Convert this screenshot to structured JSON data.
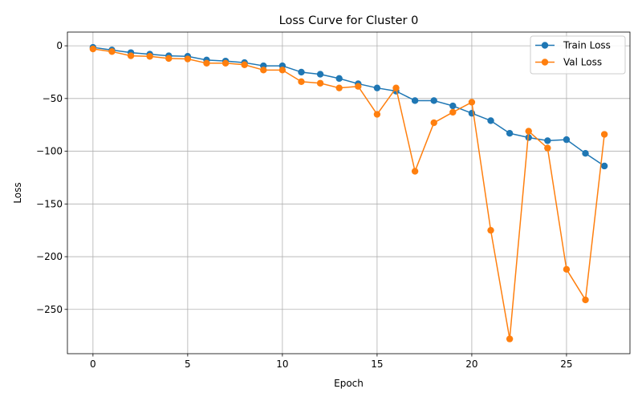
{
  "chart_data": {
    "type": "line",
    "title": "Loss Curve for Cluster 0",
    "xlabel": "Epoch",
    "ylabel": "Loss",
    "x": [
      0,
      1,
      2,
      3,
      4,
      5,
      6,
      7,
      8,
      9,
      10,
      11,
      12,
      13,
      14,
      15,
      16,
      17,
      18,
      19,
      20,
      21,
      22,
      23,
      24,
      25,
      26,
      27
    ],
    "xlim": [
      -1.35,
      28.35
    ],
    "ylim": [
      -292,
      13
    ],
    "xticks": [
      0,
      5,
      10,
      15,
      20,
      25
    ],
    "yticks": [
      0,
      -50,
      -100,
      -150,
      -200,
      -250
    ],
    "grid": true,
    "legend_position": "top-right",
    "series": [
      {
        "name": "Train Loss",
        "color": "#1f77b4",
        "values": [
          -1.5,
          -4,
          -6.5,
          -8,
          -9.5,
          -10,
          -13.5,
          -14.5,
          -16,
          -19,
          -19,
          -25,
          -27,
          -31,
          -36,
          -40,
          -43,
          -52,
          -52,
          -57,
          -64,
          -71,
          -83,
          -87,
          -90,
          -89,
          -102,
          -114
        ]
      },
      {
        "name": "Val Loss",
        "color": "#ff7f0e",
        "values": [
          -3,
          -5.5,
          -9.5,
          -10,
          -12,
          -12.5,
          -16.5,
          -16.5,
          -18,
          -23,
          -23,
          -34,
          -35.5,
          -40,
          -38.5,
          -65,
          -40,
          -119,
          -73,
          -63,
          -53.5,
          -175,
          -278,
          -81,
          -97,
          -212,
          -241,
          -84
        ]
      }
    ]
  }
}
